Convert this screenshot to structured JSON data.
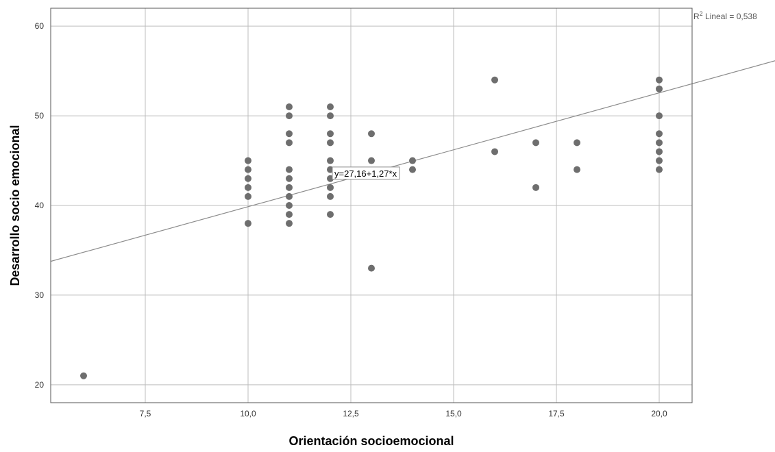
{
  "chart_data": {
    "type": "scatter",
    "xlabel": "Orientación socioemocional",
    "ylabel": "Desarrollo socio emocional",
    "xlim": [
      5.2,
      20.8
    ],
    "ylim": [
      18,
      62
    ],
    "x_ticks": [
      7.5,
      10.0,
      12.5,
      15.0,
      17.5,
      20.0
    ],
    "x_tick_labels": [
      "7,5",
      "10,0",
      "12,5",
      "15,0",
      "17,5",
      "20,0"
    ],
    "y_ticks": [
      20,
      30,
      40,
      50,
      60
    ],
    "y_tick_labels": [
      "20",
      "30",
      "40",
      "50",
      "60"
    ],
    "grid": true,
    "point_color": "#6e6e6e",
    "line_color": "#8c8c8c",
    "grid_color": "#bdbdbd",
    "fit": {
      "intercept": 27.16,
      "slope": 1.27,
      "equation_label": "y=27,16+1,27*x",
      "r2_prefix": "R",
      "r2_sup": "2",
      "r2_suffix": " Lineal = 0,538"
    },
    "points": [
      [
        6,
        21
      ],
      [
        10,
        38
      ],
      [
        10,
        41
      ],
      [
        10,
        42
      ],
      [
        10,
        43
      ],
      [
        10,
        44
      ],
      [
        10,
        45
      ],
      [
        11,
        38
      ],
      [
        11,
        39
      ],
      [
        11,
        40
      ],
      [
        11,
        41
      ],
      [
        11,
        42
      ],
      [
        11,
        43
      ],
      [
        11,
        44
      ],
      [
        11,
        47
      ],
      [
        11,
        48
      ],
      [
        11,
        50
      ],
      [
        11,
        51
      ],
      [
        12,
        39
      ],
      [
        12,
        41
      ],
      [
        12,
        42
      ],
      [
        12,
        43
      ],
      [
        12,
        44
      ],
      [
        12,
        45
      ],
      [
        12,
        47
      ],
      [
        12,
        48
      ],
      [
        12,
        50
      ],
      [
        12,
        51
      ],
      [
        13,
        33
      ],
      [
        13,
        45
      ],
      [
        13,
        48
      ],
      [
        14,
        44
      ],
      [
        14,
        45
      ],
      [
        16,
        46
      ],
      [
        16,
        54
      ],
      [
        17,
        42
      ],
      [
        17,
        47
      ],
      [
        18,
        44
      ],
      [
        18,
        47
      ],
      [
        20,
        44
      ],
      [
        20,
        45
      ],
      [
        20,
        46
      ],
      [
        20,
        47
      ],
      [
        20,
        48
      ],
      [
        20,
        50
      ],
      [
        20,
        53
      ],
      [
        20,
        54
      ]
    ]
  }
}
